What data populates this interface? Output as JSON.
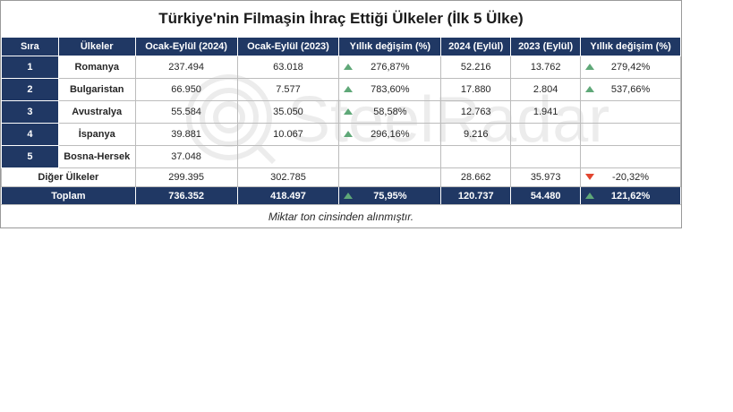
{
  "title": "Türkiye'nin Filmaşin İhraç Ettiği Ülkeler (İlk 5 Ülke)",
  "watermark_text": "SteelRadar",
  "headers": [
    "Sıra",
    "Ülkeler",
    "Ocak-Eylül (2024)",
    "Ocak-Eylül (2023)",
    "Yıllık değişim (%)",
    "2024 (Eylül)",
    "2023 (Eylül)",
    "Yıllık değişim (%)"
  ],
  "rows": [
    {
      "rank": "1",
      "country": "Romanya",
      "ytd_2024": "237.494",
      "ytd_2023": "63.018",
      "ytd_change": "276,87%",
      "ytd_trend": "up",
      "sep_2024": "52.216",
      "sep_2023": "13.762",
      "sep_change": "279,42%",
      "sep_trend": "up"
    },
    {
      "rank": "2",
      "country": "Bulgaristan",
      "ytd_2024": "66.950",
      "ytd_2023": "7.577",
      "ytd_change": "783,60%",
      "ytd_trend": "up",
      "sep_2024": "17.880",
      "sep_2023": "2.804",
      "sep_change": "537,66%",
      "sep_trend": "up"
    },
    {
      "rank": "3",
      "country": "Avustralya",
      "ytd_2024": "55.584",
      "ytd_2023": "35.050",
      "ytd_change": "58,58%",
      "ytd_trend": "up",
      "sep_2024": "12.763",
      "sep_2023": "1.941",
      "sep_change": "",
      "sep_trend": ""
    },
    {
      "rank": "4",
      "country": "İspanya",
      "ytd_2024": "39.881",
      "ytd_2023": "10.067",
      "ytd_change": "296,16%",
      "ytd_trend": "up",
      "sep_2024": "9.216",
      "sep_2023": "",
      "sep_change": "",
      "sep_trend": ""
    },
    {
      "rank": "5",
      "country": "Bosna-Hersek",
      "ytd_2024": "37.048",
      "ytd_2023": "",
      "ytd_change": "",
      "ytd_trend": "",
      "sep_2024": "",
      "sep_2023": "",
      "sep_change": "",
      "sep_trend": ""
    }
  ],
  "other": {
    "label": "Diğer Ülkeler",
    "ytd_2024": "299.395",
    "ytd_2023": "302.785",
    "ytd_change": "",
    "ytd_trend": "",
    "sep_2024": "28.662",
    "sep_2023": "35.973",
    "sep_change": "-20,32%",
    "sep_trend": "down"
  },
  "total": {
    "label": "Toplam",
    "ytd_2024": "736.352",
    "ytd_2023": "418.497",
    "ytd_change": "75,95%",
    "ytd_trend": "up",
    "sep_2024": "120.737",
    "sep_2023": "54.480",
    "sep_change": "121,62%",
    "sep_trend": "up"
  },
  "note": "Miktar  ton cinsinden alınmıştır.",
  "colors": {
    "header_bg": "#203864",
    "up": "#5fa878",
    "down": "#e2452f"
  }
}
